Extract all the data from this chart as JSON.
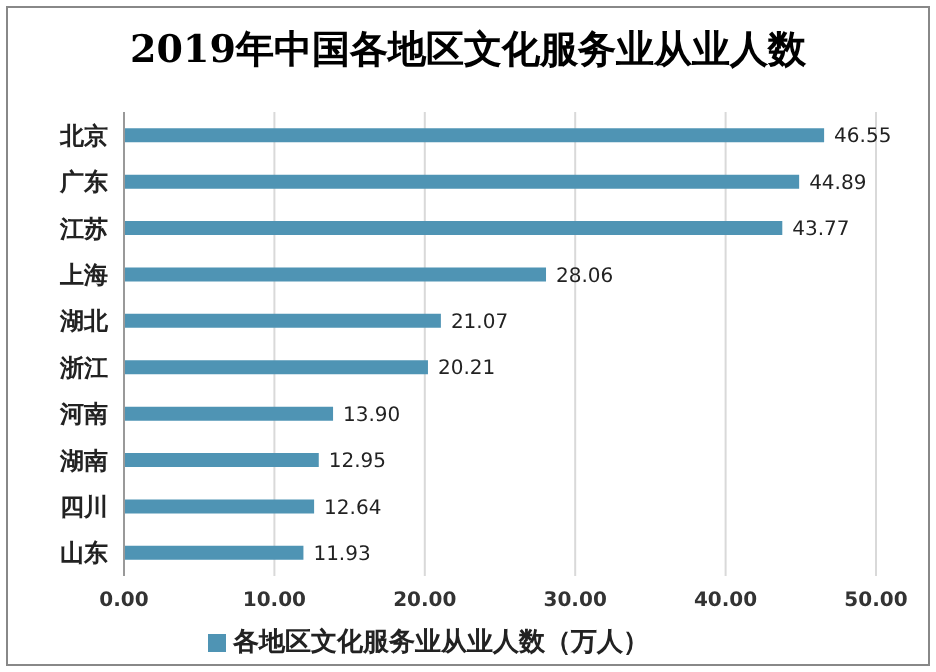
{
  "chart_data": {
    "type": "bar",
    "orientation": "horizontal",
    "title": "2019年中国各地区文化服务业从业人数",
    "categories": [
      "北京",
      "广东",
      "江苏",
      "上海",
      "湖北",
      "浙江",
      "河南",
      "湖南",
      "四川",
      "山东"
    ],
    "series": [
      {
        "name": "各地区文化服务业从业人数（万人）",
        "color": "#4f94b4",
        "values": [
          46.55,
          44.89,
          43.77,
          28.06,
          21.07,
          20.21,
          13.9,
          12.95,
          12.64,
          11.93
        ],
        "value_labels": [
          "46.55",
          "44.89",
          "43.77",
          "28.06",
          "21.07",
          "20.21",
          "13.90",
          "12.95",
          "12.64",
          "11.93"
        ]
      }
    ],
    "xlim": [
      0,
      50
    ],
    "xticks": [
      {
        "value": 0,
        "label": "0.00"
      },
      {
        "value": 10,
        "label": "10.00"
      },
      {
        "value": 20,
        "label": "20.00"
      },
      {
        "value": 30,
        "label": "30.00"
      },
      {
        "value": 40,
        "label": "40.00"
      },
      {
        "value": 50,
        "label": "50.00"
      }
    ],
    "grid": "x",
    "legend": "bottom"
  }
}
